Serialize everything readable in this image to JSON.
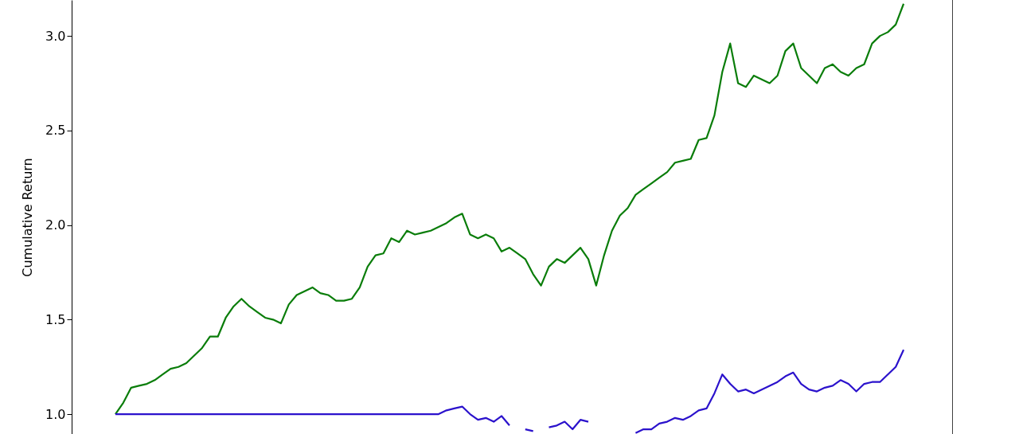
{
  "chart_data": {
    "type": "line",
    "ylabel": "Cumulative Return",
    "categories": [
      null,
      null,
      null,
      null,
      null,
      null,
      null,
      null,
      null,
      null,
      null,
      null,
      null,
      null,
      null,
      null,
      null,
      null,
      null,
      null,
      null,
      null,
      null,
      null,
      null,
      null,
      null,
      null,
      null,
      null,
      null,
      null,
      null,
      null,
      null,
      null,
      null,
      null,
      null,
      null,
      null,
      null,
      null,
      null,
      null,
      null,
      null,
      null,
      null,
      null,
      null,
      null,
      null,
      null,
      null,
      null,
      null,
      null,
      null,
      null,
      null,
      null,
      null,
      null,
      null,
      null,
      null,
      null,
      null,
      null,
      null,
      null,
      null,
      null,
      null,
      null,
      null,
      null,
      null,
      null,
      null,
      null,
      null,
      null,
      null,
      null,
      null,
      null,
      null,
      null,
      null,
      null,
      null,
      null,
      null,
      null,
      null,
      null,
      null,
      null,
      null
    ],
    "series": [
      {
        "color": "#0a7d0a",
        "values": [
          1.0,
          1.06,
          1.14,
          1.15,
          1.16,
          1.18,
          1.21,
          1.24,
          1.25,
          1.27,
          1.31,
          1.35,
          1.41,
          1.41,
          1.51,
          1.57,
          1.61,
          1.57,
          1.54,
          1.51,
          1.5,
          1.48,
          1.58,
          1.63,
          1.65,
          1.67,
          1.64,
          1.63,
          1.6,
          1.6,
          1.61,
          1.67,
          1.78,
          1.84,
          1.85,
          1.93,
          1.91,
          1.97,
          1.95,
          1.96,
          1.97,
          1.99,
          2.01,
          2.04,
          2.06,
          1.95,
          1.93,
          1.95,
          1.93,
          1.86,
          1.88,
          1.85,
          1.82,
          1.74,
          1.68,
          1.78,
          1.82,
          1.8,
          1.84,
          1.88,
          1.82,
          1.68,
          1.84,
          1.97,
          2.05,
          2.09,
          2.16,
          2.19,
          2.22,
          2.25,
          2.28,
          2.33,
          2.34,
          2.35,
          2.45,
          2.46,
          2.58,
          2.81,
          2.96,
          2.75,
          2.73,
          2.79,
          2.77,
          2.75,
          2.79,
          2.92,
          2.96,
          2.83,
          2.79,
          2.75,
          2.83,
          2.85,
          2.81,
          2.79,
          2.83,
          2.85,
          2.96,
          3.0,
          3.02,
          3.06,
          3.17
        ]
      },
      {
        "color": "#2b12cc",
        "values": [
          1.0,
          1.0,
          1.0,
          1.0,
          1.0,
          1.0,
          1.0,
          1.0,
          1.0,
          1.0,
          1.0,
          1.0,
          1.0,
          1.0,
          1.0,
          1.0,
          1.0,
          1.0,
          1.0,
          1.0,
          1.0,
          1.0,
          1.0,
          1.0,
          1.0,
          1.0,
          1.0,
          1.0,
          1.0,
          1.0,
          1.0,
          1.0,
          1.0,
          1.0,
          1.0,
          1.0,
          1.0,
          1.0,
          1.0,
          1.0,
          1.0,
          1.0,
          1.02,
          1.03,
          1.04,
          1.0,
          0.97,
          0.98,
          0.96,
          0.99,
          0.94,
          null,
          0.92,
          0.91,
          null,
          0.93,
          0.94,
          0.96,
          0.92,
          0.97,
          0.96,
          null,
          null,
          null,
          null,
          null,
          0.9,
          0.92,
          0.92,
          0.95,
          0.96,
          0.98,
          0.97,
          0.99,
          1.02,
          1.03,
          1.11,
          1.21,
          1.16,
          1.12,
          1.13,
          1.11,
          1.13,
          1.15,
          1.17,
          1.2,
          1.22,
          1.16,
          1.13,
          1.12,
          1.14,
          1.15,
          1.18,
          1.16,
          1.12,
          1.16,
          1.17,
          1.17,
          1.21,
          1.25,
          1.34
        ]
      }
    ],
    "ylim": [
      0.895,
      3.19
    ],
    "yticks": [
      {
        "value": 1,
        "label": "1.0"
      },
      {
        "value": 1.5,
        "label": "1.5"
      },
      {
        "value": 2,
        "label": "2.0"
      },
      {
        "value": 2.5,
        "label": "2.5"
      },
      {
        "value": 3,
        "label": "3.0"
      }
    ],
    "tick_labels": "y",
    "grid": false
  }
}
